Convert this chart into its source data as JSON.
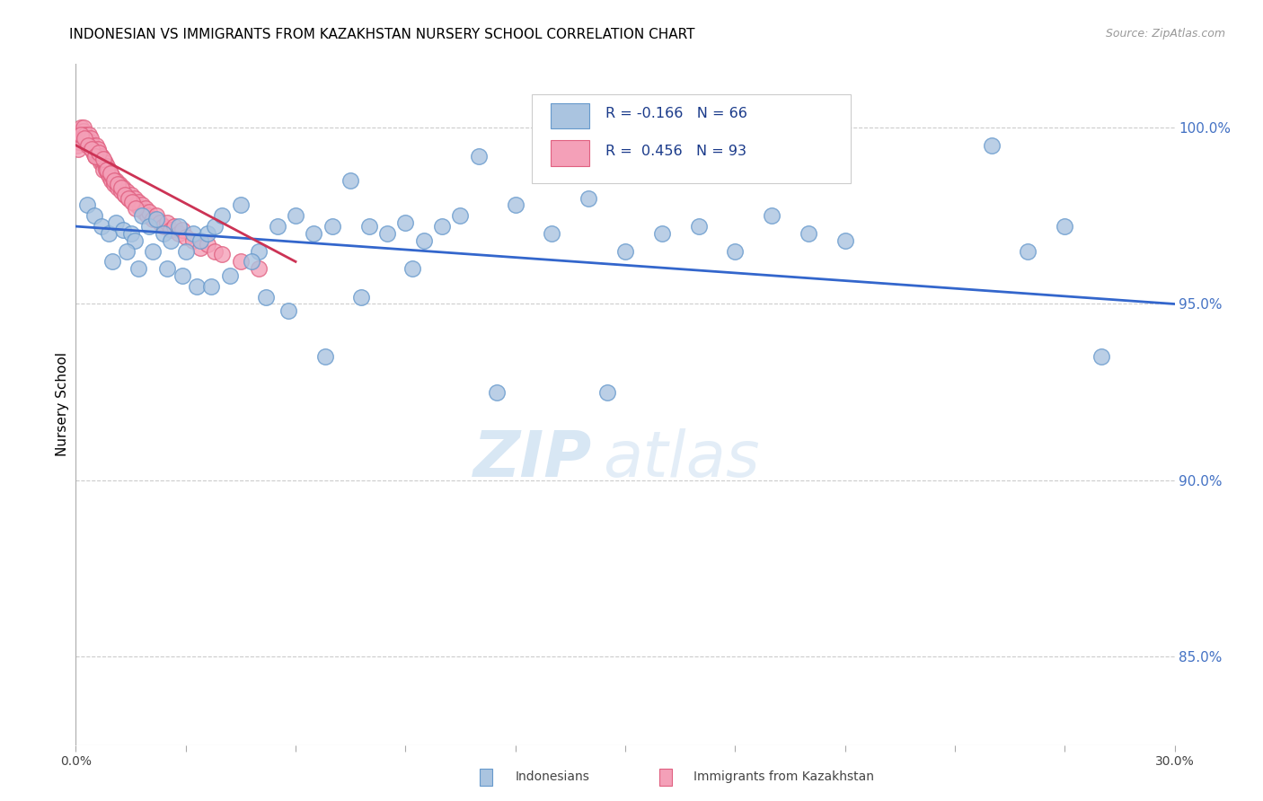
{
  "title": "INDONESIAN VS IMMIGRANTS FROM KAZAKHSTAN NURSERY SCHOOL CORRELATION CHART",
  "source": "Source: ZipAtlas.com",
  "ylabel": "Nursery School",
  "yticks": [
    85.0,
    90.0,
    95.0,
    100.0
  ],
  "ytick_labels": [
    "85.0%",
    "90.0%",
    "95.0%",
    "100.0%"
  ],
  "xmin": 0.0,
  "xmax": 30.0,
  "ymin": 82.5,
  "ymax": 101.8,
  "blue_color": "#aac4e0",
  "blue_edge_color": "#6699cc",
  "pink_color": "#f4a0b8",
  "pink_edge_color": "#e06080",
  "blue_line_color": "#3366cc",
  "pink_line_color": "#cc3355",
  "bottom_legend_blue": "Indonesians",
  "bottom_legend_pink": "Immigrants from Kazakhstan",
  "watermark_zip": "ZIP",
  "watermark_atlas": "atlas",
  "blue_x": [
    0.3,
    0.5,
    0.7,
    0.9,
    1.1,
    1.3,
    1.5,
    1.6,
    1.8,
    2.0,
    2.2,
    2.4,
    2.6,
    2.8,
    3.0,
    3.2,
    3.4,
    3.6,
    3.8,
    4.0,
    4.5,
    5.0,
    5.5,
    6.0,
    6.5,
    7.0,
    7.5,
    8.0,
    8.5,
    9.0,
    9.5,
    10.0,
    10.5,
    11.0,
    12.0,
    13.0,
    14.0,
    15.0,
    16.0,
    17.0,
    18.0,
    19.0,
    20.0,
    21.0,
    25.0,
    26.0,
    28.0,
    1.0,
    1.4,
    1.7,
    2.1,
    2.5,
    2.9,
    3.3,
    3.7,
    4.2,
    4.8,
    5.2,
    5.8,
    6.8,
    7.8,
    9.2,
    11.5,
    14.5,
    27.0
  ],
  "blue_y": [
    97.8,
    97.5,
    97.2,
    97.0,
    97.3,
    97.1,
    97.0,
    96.8,
    97.5,
    97.2,
    97.4,
    97.0,
    96.8,
    97.2,
    96.5,
    97.0,
    96.8,
    97.0,
    97.2,
    97.5,
    97.8,
    96.5,
    97.2,
    97.5,
    97.0,
    97.2,
    98.5,
    97.2,
    97.0,
    97.3,
    96.8,
    97.2,
    97.5,
    99.2,
    97.8,
    97.0,
    98.0,
    96.5,
    97.0,
    97.2,
    96.5,
    97.5,
    97.0,
    96.8,
    99.5,
    96.5,
    93.5,
    96.2,
    96.5,
    96.0,
    96.5,
    96.0,
    95.8,
    95.5,
    95.5,
    95.8,
    96.2,
    95.2,
    94.8,
    93.5,
    95.2,
    96.0,
    92.5,
    92.5,
    97.2
  ],
  "pink_x": [
    0.05,
    0.08,
    0.1,
    0.12,
    0.15,
    0.18,
    0.2,
    0.22,
    0.25,
    0.28,
    0.3,
    0.32,
    0.35,
    0.38,
    0.4,
    0.42,
    0.45,
    0.48,
    0.5,
    0.52,
    0.55,
    0.58,
    0.6,
    0.62,
    0.65,
    0.68,
    0.7,
    0.72,
    0.75,
    0.78,
    0.8,
    0.82,
    0.85,
    0.88,
    0.9,
    0.92,
    0.95,
    0.98,
    1.0,
    1.05,
    1.1,
    1.15,
    1.2,
    1.25,
    1.3,
    1.35,
    1.4,
    1.45,
    1.5,
    1.55,
    1.6,
    1.65,
    1.7,
    1.75,
    1.8,
    1.85,
    1.9,
    1.95,
    2.0,
    2.1,
    2.2,
    2.3,
    2.4,
    2.5,
    2.6,
    2.7,
    2.8,
    2.9,
    3.0,
    3.2,
    3.4,
    3.6,
    3.8,
    4.0,
    4.5,
    5.0,
    0.06,
    0.14,
    0.24,
    0.34,
    0.44,
    0.54,
    0.64,
    0.74,
    0.84,
    0.94,
    1.04,
    1.14,
    1.24,
    1.34,
    1.44,
    1.54,
    1.64
  ],
  "pink_y": [
    99.5,
    99.6,
    99.8,
    99.9,
    100.0,
    99.7,
    99.9,
    100.0,
    99.8,
    99.6,
    99.7,
    99.5,
    99.8,
    99.6,
    99.5,
    99.7,
    99.5,
    99.3,
    99.4,
    99.2,
    99.5,
    99.2,
    99.4,
    99.1,
    99.2,
    99.0,
    99.2,
    99.0,
    98.8,
    99.0,
    99.0,
    98.8,
    98.9,
    98.7,
    98.8,
    98.6,
    98.7,
    98.5,
    98.6,
    98.4,
    98.5,
    98.3,
    98.4,
    98.2,
    98.3,
    98.1,
    98.2,
    98.0,
    98.1,
    97.9,
    98.0,
    97.8,
    97.9,
    97.7,
    97.8,
    97.6,
    97.7,
    97.5,
    97.6,
    97.4,
    97.5,
    97.3,
    97.2,
    97.3,
    97.1,
    97.2,
    97.0,
    97.1,
    96.9,
    96.8,
    96.6,
    96.7,
    96.5,
    96.4,
    96.2,
    96.0,
    99.4,
    99.8,
    99.7,
    99.5,
    99.4,
    99.2,
    99.3,
    99.1,
    98.8,
    98.7,
    98.5,
    98.4,
    98.3,
    98.1,
    98.0,
    97.9,
    97.7
  ],
  "blue_trend_x0": 0.0,
  "blue_trend_x1": 30.0,
  "blue_trend_y0": 97.2,
  "blue_trend_y1": 95.0,
  "pink_trend_x0": 0.0,
  "pink_trend_x1": 6.0,
  "pink_trend_y0": 99.5,
  "pink_trend_y1": 96.2
}
